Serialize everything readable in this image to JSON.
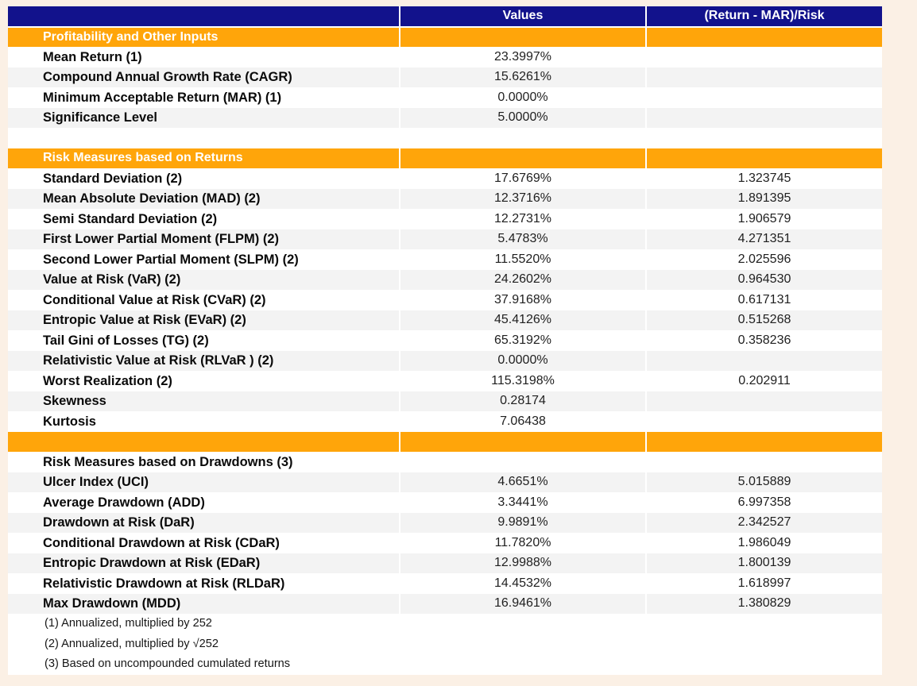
{
  "colors": {
    "header_bg": "#12128C",
    "section_bg": "#FFA50A",
    "row_alt_bg": "#F3F3F3",
    "row_bg": "#FFFFFF",
    "page_bg": "#FBF0E5",
    "header_text": "#FFFFFF",
    "label_text": "#0A0A0A",
    "value_text": "#1F1F1F"
  },
  "table": {
    "columns": {
      "labels": "",
      "values": "Values",
      "ratio": "(Return - MAR)/Risk"
    },
    "rows": [
      {
        "type": "section",
        "label": "Profitability and Other Inputs",
        "value": "",
        "ratio": ""
      },
      {
        "type": "data",
        "label": "Mean Return (1)",
        "value": "23.3997%",
        "ratio": ""
      },
      {
        "type": "data",
        "label": "Compound Annual Growth Rate (CAGR)",
        "value": "15.6261%",
        "ratio": ""
      },
      {
        "type": "data",
        "label": "Minimum Acceptable Return (MAR) (1)",
        "value": "0.0000%",
        "ratio": ""
      },
      {
        "type": "data",
        "label": "Significance Level",
        "value": "5.0000%",
        "ratio": ""
      },
      {
        "type": "blank",
        "label": "",
        "value": "",
        "ratio": ""
      },
      {
        "type": "section",
        "label": "Risk Measures based on Returns",
        "value": "",
        "ratio": ""
      },
      {
        "type": "data",
        "label": "Standard Deviation (2)",
        "value": "17.6769%",
        "ratio": "1.323745"
      },
      {
        "type": "data",
        "label": "Mean Absolute Deviation (MAD) (2)",
        "value": "12.3716%",
        "ratio": "1.891395"
      },
      {
        "type": "data",
        "label": "Semi Standard Deviation (2)",
        "value": "12.2731%",
        "ratio": "1.906579"
      },
      {
        "type": "data",
        "label": "First Lower Partial Moment (FLPM) (2)",
        "value": "5.4783%",
        "ratio": "4.271351"
      },
      {
        "type": "data",
        "label": "Second Lower Partial Moment (SLPM) (2)",
        "value": "11.5520%",
        "ratio": "2.025596"
      },
      {
        "type": "data",
        "label": "Value at Risk (VaR) (2)",
        "value": "24.2602%",
        "ratio": "0.964530"
      },
      {
        "type": "data",
        "label": "Conditional Value at Risk (CVaR) (2)",
        "value": "37.9168%",
        "ratio": "0.617131"
      },
      {
        "type": "data",
        "label": "Entropic Value at Risk (EVaR) (2)",
        "value": "45.4126%",
        "ratio": "0.515268"
      },
      {
        "type": "data",
        "label": "Tail Gini of Losses (TG) (2)",
        "value": "65.3192%",
        "ratio": "0.358236"
      },
      {
        "type": "data",
        "label": "Relativistic Value at Risk (RLVaR ) (2)",
        "value": "0.0000%",
        "ratio": ""
      },
      {
        "type": "data",
        "label": "Worst Realization (2)",
        "value": "115.3198%",
        "ratio": "0.202911"
      },
      {
        "type": "data",
        "label": "Skewness",
        "value": "0.28174",
        "ratio": ""
      },
      {
        "type": "data",
        "label": "Kurtosis",
        "value": "7.06438",
        "ratio": ""
      },
      {
        "type": "section",
        "label": "",
        "value": "",
        "ratio": ""
      },
      {
        "type": "subheader",
        "label": "Risk Measures based on Drawdowns (3)",
        "value": "",
        "ratio": ""
      },
      {
        "type": "data",
        "label": "Ulcer Index (UCI)",
        "value": "4.6651%",
        "ratio": "5.015889"
      },
      {
        "type": "data",
        "label": "Average Drawdown (ADD)",
        "value": "3.3441%",
        "ratio": "6.997358"
      },
      {
        "type": "data",
        "label": "Drawdown at Risk (DaR)",
        "value": "9.9891%",
        "ratio": "2.342527"
      },
      {
        "type": "data",
        "label": "Conditional Drawdown at Risk (CDaR)",
        "value": "11.7820%",
        "ratio": "1.986049"
      },
      {
        "type": "data",
        "label": "Entropic Drawdown at Risk (EDaR)",
        "value": "12.9988%",
        "ratio": "1.800139"
      },
      {
        "type": "data",
        "label": "Relativistic Drawdown at Risk (RLDaR)",
        "value": "14.4532%",
        "ratio": "1.618997"
      },
      {
        "type": "data",
        "label": "Max Drawdown (MDD)",
        "value": "16.9461%",
        "ratio": "1.380829"
      },
      {
        "type": "footnote",
        "label": "(1) Annualized, multiplied by 252",
        "value": "",
        "ratio": ""
      },
      {
        "type": "footnote",
        "label": "(2) Annualized, multiplied by √252",
        "value": "",
        "ratio": ""
      },
      {
        "type": "footnote",
        "label": "(3) Based on uncompounded cumulated returns",
        "value": "",
        "ratio": ""
      }
    ]
  }
}
